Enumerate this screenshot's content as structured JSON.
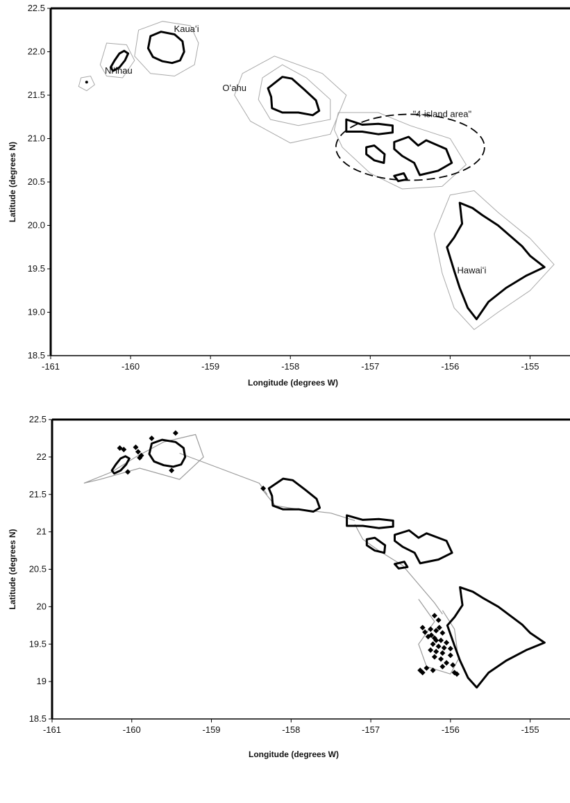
{
  "chart_data": [
    {
      "type": "map",
      "xlabel": "Longitude (degrees W)",
      "ylabel": "Latitude (degrees N)",
      "xlim": [
        -161,
        -154.5
      ],
      "ylim": [
        18.5,
        22.5
      ],
      "xticks": [
        "-161",
        "-160",
        "-159",
        "-158",
        "-157",
        "-156",
        "-155"
      ],
      "yticks": [
        "18.5",
        "19.0",
        "19.5",
        "20.0",
        "20.5",
        "21.0",
        "21.5",
        "22.0",
        "22.5"
      ],
      "labels": [
        {
          "text": "Kauaʻi",
          "lon": -159.3,
          "lat": 22.23
        },
        {
          "text": "Niʻihau",
          "lon": -160.15,
          "lat": 21.75
        },
        {
          "text": "Oʻahu",
          "lon": -158.7,
          "lat": 21.55
        },
        {
          "text": "\"4-island area\"",
          "lon": -156.1,
          "lat": 21.25
        },
        {
          "text": "Hawaiʻi",
          "lon": -155.73,
          "lat": 19.45
        }
      ],
      "ellipse": {
        "center_lon": -156.5,
        "center_lat": 20.9,
        "radius_lon": 0.93,
        "radius_lat": 0.38
      }
    },
    {
      "type": "scatter",
      "xlabel": "Longitude (degrees W)",
      "ylabel": "Latitude (degrees N)",
      "xlim": [
        -161,
        -154.5
      ],
      "ylim": [
        18.5,
        22.5
      ],
      "xticks": [
        "-161",
        "-160",
        "-159",
        "-158",
        "-157",
        "-156",
        "-155"
      ],
      "yticks": [
        "18.5",
        "19",
        "19.5",
        "20",
        "20.5",
        "21",
        "21.5",
        "22",
        "22.5"
      ],
      "points": [
        [
          -160.15,
          22.12
        ],
        [
          -160.1,
          22.1
        ],
        [
          -159.95,
          22.13
        ],
        [
          -159.92,
          22.07
        ],
        [
          -159.88,
          22.02
        ],
        [
          -159.9,
          21.99
        ],
        [
          -159.75,
          22.25
        ],
        [
          -159.45,
          22.32
        ],
        [
          -159.5,
          21.82
        ],
        [
          -160.05,
          21.8
        ],
        [
          -158.35,
          21.58
        ],
        [
          -156.2,
          19.88
        ],
        [
          -156.15,
          19.82
        ],
        [
          -156.35,
          19.72
        ],
        [
          -156.25,
          19.7
        ],
        [
          -156.18,
          19.68
        ],
        [
          -156.1,
          19.65
        ],
        [
          -156.28,
          19.6
        ],
        [
          -156.2,
          19.58
        ],
        [
          -156.12,
          19.55
        ],
        [
          -156.05,
          19.52
        ],
        [
          -156.22,
          19.5
        ],
        [
          -156.15,
          19.47
        ],
        [
          -156.08,
          19.45
        ],
        [
          -156.0,
          19.44
        ],
        [
          -156.25,
          19.42
        ],
        [
          -156.18,
          19.4
        ],
        [
          -156.1,
          19.38
        ],
        [
          -156.0,
          19.35
        ],
        [
          -156.2,
          19.33
        ],
        [
          -156.12,
          19.3
        ],
        [
          -156.05,
          19.25
        ],
        [
          -155.97,
          19.22
        ],
        [
          -156.1,
          19.2
        ],
        [
          -156.3,
          19.18
        ],
        [
          -156.22,
          19.15
        ],
        [
          -156.38,
          19.15
        ],
        [
          -156.35,
          19.12
        ],
        [
          -155.95,
          19.12
        ],
        [
          -155.92,
          19.1
        ],
        [
          -156.18,
          19.55
        ],
        [
          -156.24,
          19.62
        ],
        [
          -156.32,
          19.66
        ],
        [
          -156.14,
          19.72
        ]
      ]
    }
  ]
}
